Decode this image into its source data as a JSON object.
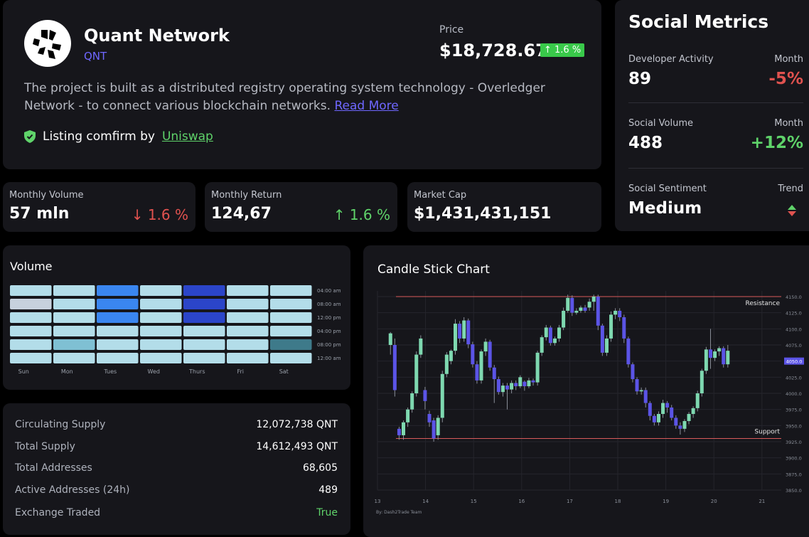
{
  "project": {
    "name": "Quant Network",
    "symbol": "QNT",
    "price_label": "Price",
    "price": "$18,728.67",
    "price_change": "↑ 1.6 %",
    "description": "The project is built as a distributed registry operating system technology - Overledger Network - to connect various blockchain networks.",
    "read_more": "Read More",
    "listing_text": "Listing comfirm by",
    "listing_link": "Uniswap"
  },
  "stats": [
    {
      "label": "Monthly Volume",
      "value": "57 mln",
      "change": "↓ 1.6 %",
      "direction": "down"
    },
    {
      "label": "Monthly Return",
      "value": "124,67",
      "change": "↑ 1.6 %",
      "direction": "up"
    },
    {
      "label": "Market Cap",
      "value": "$1,431,431,151",
      "change": "",
      "direction": ""
    }
  ],
  "social": {
    "title": "Social Metrics",
    "rows": [
      {
        "label": "Developer Activity",
        "period": "Month",
        "value": "89",
        "change": "-5%"
      },
      {
        "label": "Social Volume",
        "period": "Month",
        "value": "488",
        "change": "+12%"
      },
      {
        "label": "Social Sentiment",
        "period": "Trend",
        "value": "Medium",
        "change": ""
      }
    ]
  },
  "volume": {
    "title": "Volume",
    "days": [
      "Sun",
      "Mon",
      "Tues",
      "Wed",
      "Thurs",
      "Fri",
      "Sat"
    ],
    "times": [
      "04:00 am",
      "08:00 am",
      "12:00 pm",
      "04:00 pm",
      "08:00 pm",
      "12:00 am"
    ],
    "levels": [
      [
        0,
        0,
        2,
        0,
        3,
        0,
        0
      ],
      [
        4,
        0,
        2,
        0,
        3,
        0,
        0
      ],
      [
        0,
        0,
        2,
        0,
        3,
        0,
        0
      ],
      [
        0,
        0,
        0,
        0,
        0,
        0,
        0
      ],
      [
        0,
        1,
        0,
        0,
        0,
        0,
        5
      ],
      [
        0,
        0,
        0,
        0,
        0,
        0,
        0
      ]
    ],
    "colors": [
      "#b3dde9",
      "#7fc0d3",
      "#3a86f0",
      "#2b45c9",
      "#c7d1dd",
      "#3e7a8a"
    ]
  },
  "supply": [
    {
      "label": "Circulating Supply",
      "value": "12,072,738 QNT"
    },
    {
      "label": "Total Supply",
      "value": "14,612,493 QNT"
    },
    {
      "label": "Total Addresses",
      "value": "68,605"
    },
    {
      "label": "Active Addresses (24h)",
      "value": "489"
    },
    {
      "label": "Exchange Traded",
      "value": "True"
    }
  ],
  "candle": {
    "title": "Candle Stick Chart",
    "resistance_label": "Resistance",
    "support_label": "Support",
    "credit": "By: Dash2Trade Team",
    "current_price": "4050.0",
    "resistance": 4150,
    "support": 3930,
    "y_ticks": [
      "4150.0",
      "4125.0",
      "4100.0",
      "4075.0",
      "4050.0",
      "4025.0",
      "4000.0",
      "3975.0",
      "3950.0",
      "3925.0",
      "3900.0",
      "3875.0",
      "3850.0"
    ],
    "x_ticks": [
      "13",
      "14",
      "15",
      "16",
      "17",
      "18",
      "19",
      "20",
      "21"
    ],
    "colors": {
      "up": "#7ed8b0",
      "down": "#5b54e6",
      "level": "#d95b5b"
    }
  },
  "chart_data": {
    "type": "candlestick",
    "title": "Candle Stick Chart",
    "x_ticks": [
      "13",
      "14",
      "15",
      "16",
      "17",
      "18",
      "19",
      "20",
      "21"
    ],
    "ylim": [
      3850,
      4150
    ],
    "levels": {
      "Resistance": 4150,
      "Support": 3930
    },
    "candles": [
      [
        13.27,
        4075,
        4093,
        4060,
        4095
      ],
      [
        13.36,
        4075,
        4005,
        3995,
        4085
      ],
      [
        13.45,
        3945,
        3935,
        3928,
        3948
      ],
      [
        13.54,
        3935,
        3955,
        3928,
        3958
      ],
      [
        13.63,
        3955,
        3975,
        3948,
        3978
      ],
      [
        13.72,
        3975,
        4000,
        3970,
        4003
      ],
      [
        13.81,
        4000,
        4060,
        3995,
        4065
      ],
      [
        13.9,
        4060,
        4085,
        4055,
        4090
      ],
      [
        13.99,
        4005,
        3988,
        3975,
        4010
      ],
      [
        14.08,
        3968,
        3955,
        3948,
        3973
      ],
      [
        14.17,
        3958,
        3930,
        3925,
        3962
      ],
      [
        14.26,
        3935,
        3962,
        3928,
        3966
      ],
      [
        14.35,
        3962,
        4030,
        3955,
        4035
      ],
      [
        14.44,
        4030,
        4060,
        4025,
        4064
      ],
      [
        14.53,
        4050,
        4066,
        4045,
        4068
      ],
      [
        14.62,
        4066,
        4108,
        4060,
        4115
      ],
      [
        14.71,
        4108,
        4085,
        4078,
        4112
      ],
      [
        14.8,
        4085,
        4113,
        4080,
        4118
      ],
      [
        14.89,
        4113,
        4076,
        4070,
        4116
      ],
      [
        14.98,
        4076,
        4045,
        4040,
        4080
      ],
      [
        15.07,
        4045,
        4020,
        4015,
        4050
      ],
      [
        15.16,
        4020,
        4065,
        4015,
        4068
      ],
      [
        15.25,
        4065,
        4080,
        4058,
        4085
      ],
      [
        15.34,
        4080,
        4040,
        4035,
        4083
      ],
      [
        15.43,
        4040,
        4022,
        3985,
        4044
      ],
      [
        15.52,
        4022,
        4002,
        3998,
        4026
      ],
      [
        15.61,
        4002,
        4012,
        3995,
        4016
      ],
      [
        15.7,
        4012,
        4006,
        3975,
        4016
      ],
      [
        15.79,
        4006,
        4016,
        4000,
        4020
      ],
      [
        15.88,
        4016,
        4011,
        4005,
        4020
      ],
      [
        15.97,
        4011,
        4025,
        4008,
        4028
      ],
      [
        16.06,
        4018,
        4011,
        4004,
        4020
      ],
      [
        16.15,
        4011,
        4020,
        4008,
        4024
      ],
      [
        16.24,
        4020,
        4017,
        4012,
        4023
      ],
      [
        16.33,
        4017,
        4063,
        4012,
        4066
      ],
      [
        16.42,
        4063,
        4087,
        4058,
        4090
      ],
      [
        16.51,
        4087,
        4102,
        4082,
        4106
      ],
      [
        16.6,
        4102,
        4078,
        4074,
        4105
      ],
      [
        16.69,
        4078,
        4085,
        4074,
        4088
      ],
      [
        16.78,
        4085,
        4102,
        4080,
        4106
      ],
      [
        16.87,
        4102,
        4128,
        4098,
        4133
      ],
      [
        16.96,
        4128,
        4148,
        4125,
        4153
      ],
      [
        17.05,
        4148,
        4125,
        4120,
        4152
      ],
      [
        17.14,
        4125,
        4128,
        4122,
        4132
      ],
      [
        17.23,
        4128,
        4133,
        4125,
        4136
      ],
      [
        17.32,
        4133,
        4128,
        4125,
        4137
      ],
      [
        17.41,
        4133,
        4142,
        4128,
        4147
      ],
      [
        17.5,
        4142,
        4150,
        4128,
        4153
      ],
      [
        17.59,
        4150,
        4105,
        4098,
        4153
      ],
      [
        17.68,
        4105,
        4063,
        4058,
        4108
      ],
      [
        17.77,
        4063,
        4085,
        4058,
        4090
      ],
      [
        17.86,
        4085,
        4122,
        4080,
        4127
      ],
      [
        17.95,
        4122,
        4128,
        4115,
        4132
      ],
      [
        18.04,
        4128,
        4118,
        4112,
        4132
      ],
      [
        18.13,
        4118,
        4085,
        4078,
        4122
      ],
      [
        18.22,
        4085,
        4045,
        4040,
        4088
      ],
      [
        18.31,
        4045,
        4022,
        4017,
        4048
      ],
      [
        18.4,
        4022,
        4003,
        3998,
        4025
      ],
      [
        18.49,
        4003,
        4005,
        3998,
        4009
      ],
      [
        18.58,
        4005,
        3985,
        3978,
        4009
      ],
      [
        18.67,
        3985,
        3965,
        3958,
        3988
      ],
      [
        18.76,
        3965,
        3955,
        3950,
        3968
      ],
      [
        18.85,
        3955,
        3968,
        3950,
        3972
      ],
      [
        18.94,
        3968,
        3985,
        3962,
        3990
      ],
      [
        19.03,
        3985,
        3978,
        3970,
        3988
      ],
      [
        19.12,
        3978,
        3962,
        3958,
        3982
      ],
      [
        19.21,
        3962,
        3950,
        3945,
        3966
      ],
      [
        19.3,
        3950,
        3945,
        3936,
        3955
      ],
      [
        19.39,
        3945,
        3957,
        3940,
        3960
      ],
      [
        19.48,
        3957,
        3968,
        3952,
        3971
      ],
      [
        19.57,
        3968,
        3977,
        3962,
        3980
      ],
      [
        19.66,
        3977,
        4000,
        3972,
        4004
      ],
      [
        19.75,
        4000,
        4035,
        3995,
        4038
      ],
      [
        19.84,
        4035,
        4068,
        4030,
        4072
      ],
      [
        19.93,
        4068,
        4055,
        4038,
        4100
      ],
      [
        20.02,
        4055,
        4065,
        4050,
        4068
      ],
      [
        20.11,
        4065,
        4070,
        4058,
        4073
      ],
      [
        20.2,
        4070,
        4045,
        4040,
        4073
      ],
      [
        20.29,
        4045,
        4066,
        4040,
        4075
      ]
    ]
  }
}
